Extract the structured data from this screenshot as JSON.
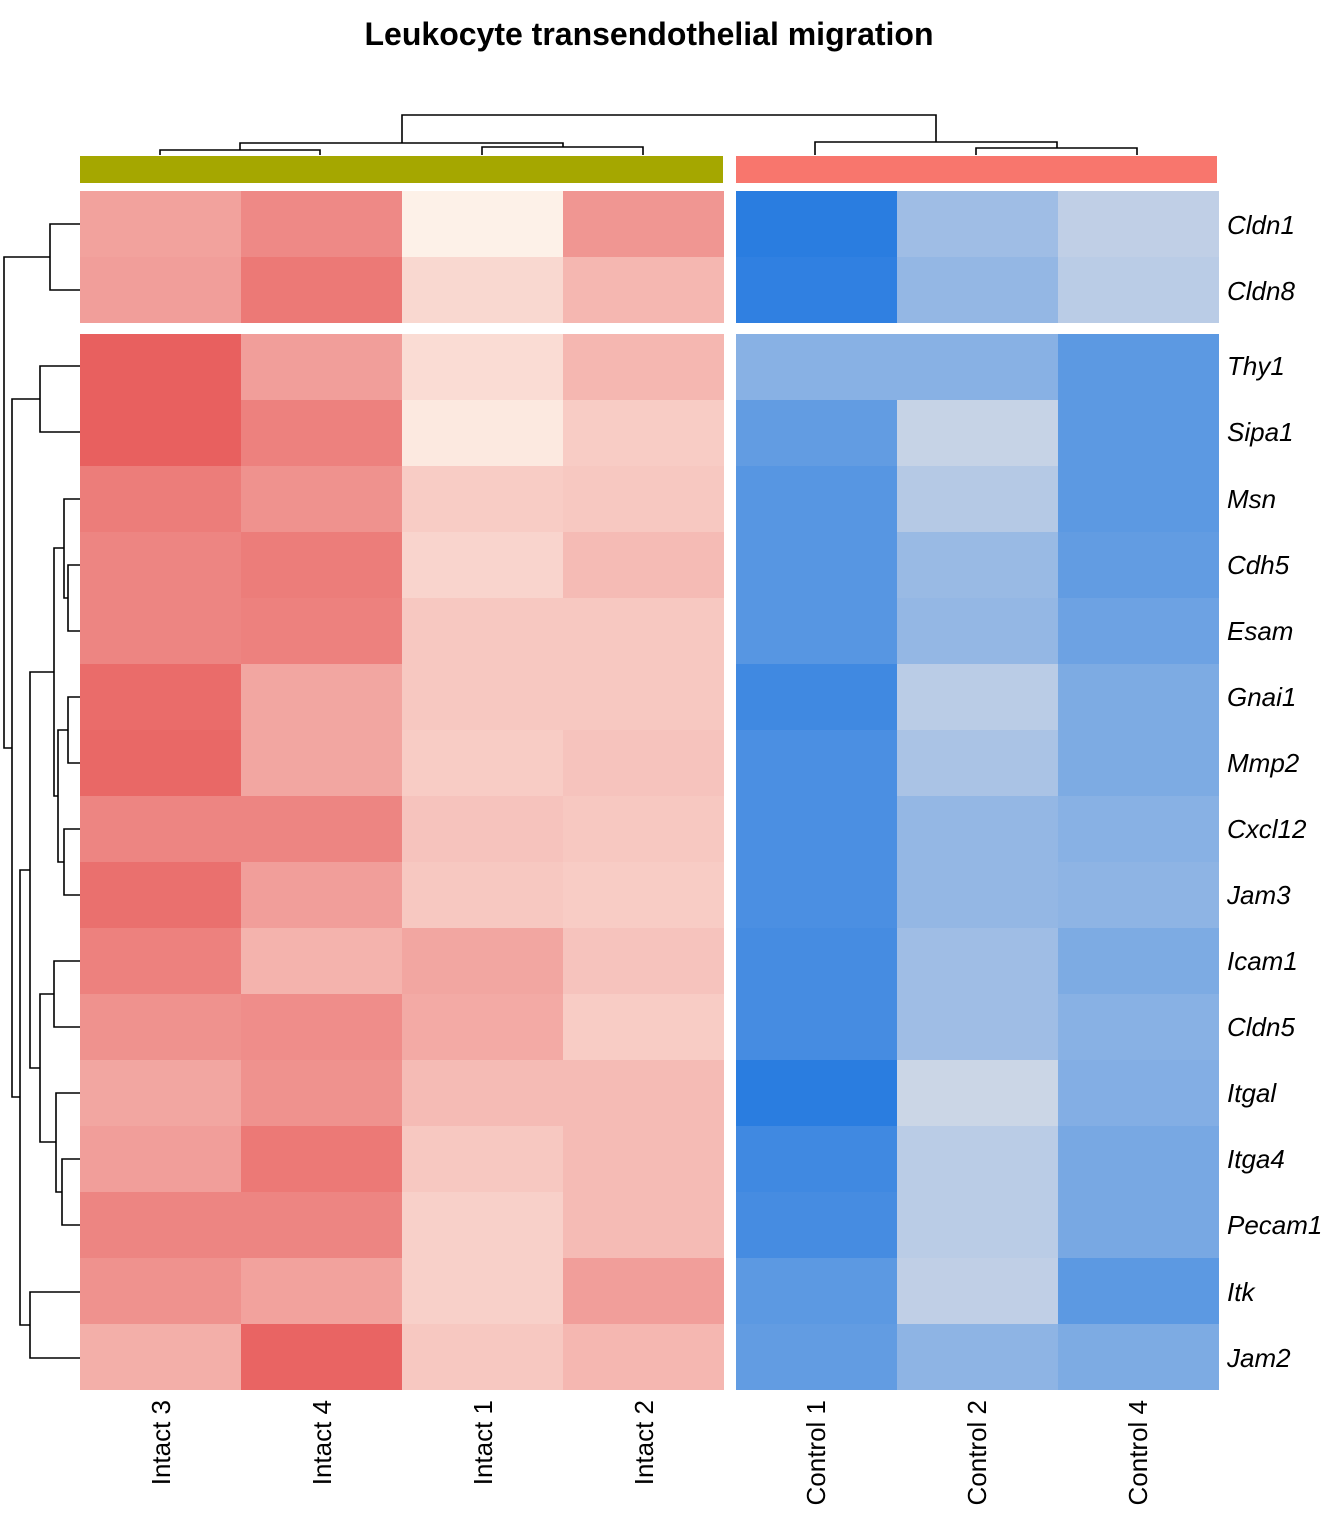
{
  "chart_data": {
    "type": "heatmap",
    "title": "Leukocyte transendothelial migration",
    "columns": [
      "Intact 3",
      "Intact 4",
      "Intact 1",
      "Intact 2",
      "Control 1",
      "Control 2",
      "Control 4"
    ],
    "column_groups": [
      {
        "name": "Intact",
        "color": "#A5A700",
        "columns": [
          "Intact 3",
          "Intact 4",
          "Intact 1",
          "Intact 2"
        ]
      },
      {
        "name": "Control",
        "color": "#F8766D",
        "columns": [
          "Control 1",
          "Control 2",
          "Control 4"
        ]
      }
    ],
    "rows": [
      "Cldn1",
      "Cldn8",
      "Thy1",
      "Sipa1",
      "Msn",
      "Cdh5",
      "Esam",
      "Gnai1",
      "Mmp2",
      "Cxcl12",
      "Jam3",
      "Icam1",
      "Cldn5",
      "Itgal",
      "Itga4",
      "Pecam1",
      "Itk",
      "Jam2"
    ],
    "row_groups": [
      [
        "Cldn1",
        "Cldn8"
      ],
      [
        "Thy1",
        "Sipa1",
        "Msn",
        "Cdh5",
        "Esam",
        "Gnai1",
        "Mmp2",
        "Cxcl12",
        "Jam3",
        "Icam1",
        "Cldn5",
        "Itgal",
        "Itga4",
        "Pecam1",
        "Itk",
        "Jam2"
      ]
    ],
    "color_scale": {
      "low": "#1F77E0",
      "mid": "#FDF1E8",
      "high": "#E54B4B",
      "range": [
        -2,
        2
      ]
    },
    "values": [
      [
        0.95,
        1.25,
        0.0,
        1.1,
        -1.9,
        -0.85,
        -0.55
      ],
      [
        1.0,
        1.45,
        0.3,
        0.7,
        -1.85,
        -0.95,
        -0.6
      ],
      [
        1.75,
        1.0,
        0.25,
        0.7,
        -1.05,
        -1.05,
        -1.45
      ],
      [
        1.75,
        1.35,
        0.1,
        0.45,
        -1.4,
        -0.5,
        -1.45
      ],
      [
        1.4,
        1.15,
        0.45,
        0.5,
        -1.5,
        -0.65,
        -1.45
      ],
      [
        1.3,
        1.4,
        0.35,
        0.65,
        -1.5,
        -0.9,
        -1.4
      ],
      [
        1.3,
        1.35,
        0.5,
        0.5,
        -1.5,
        -0.95,
        -1.3
      ],
      [
        1.6,
        0.9,
        0.5,
        0.5,
        -1.7,
        -0.6,
        -1.15
      ],
      [
        1.65,
        0.9,
        0.45,
        0.55,
        -1.6,
        -0.75,
        -1.15
      ],
      [
        1.3,
        1.3,
        0.55,
        0.5,
        -1.6,
        -0.95,
        -1.05
      ],
      [
        1.55,
        1.0,
        0.5,
        0.45,
        -1.6,
        -0.95,
        -1.0
      ],
      [
        1.35,
        0.75,
        0.9,
        0.55,
        -1.65,
        -0.85,
        -1.15
      ],
      [
        1.15,
        1.2,
        0.85,
        0.45,
        -1.65,
        -0.85,
        -1.05
      ],
      [
        0.9,
        1.15,
        0.65,
        0.65,
        -1.9,
        -0.45,
        -1.1
      ],
      [
        1.0,
        1.45,
        0.5,
        0.65,
        -1.7,
        -0.6,
        -1.2
      ],
      [
        1.3,
        1.3,
        0.4,
        0.65,
        -1.65,
        -0.6,
        -1.2
      ],
      [
        1.15,
        0.95,
        0.4,
        1.0,
        -1.45,
        -0.55,
        -1.45
      ],
      [
        0.8,
        1.7,
        0.5,
        0.7,
        -1.4,
        -1.0,
        -1.15
      ]
    ]
  }
}
